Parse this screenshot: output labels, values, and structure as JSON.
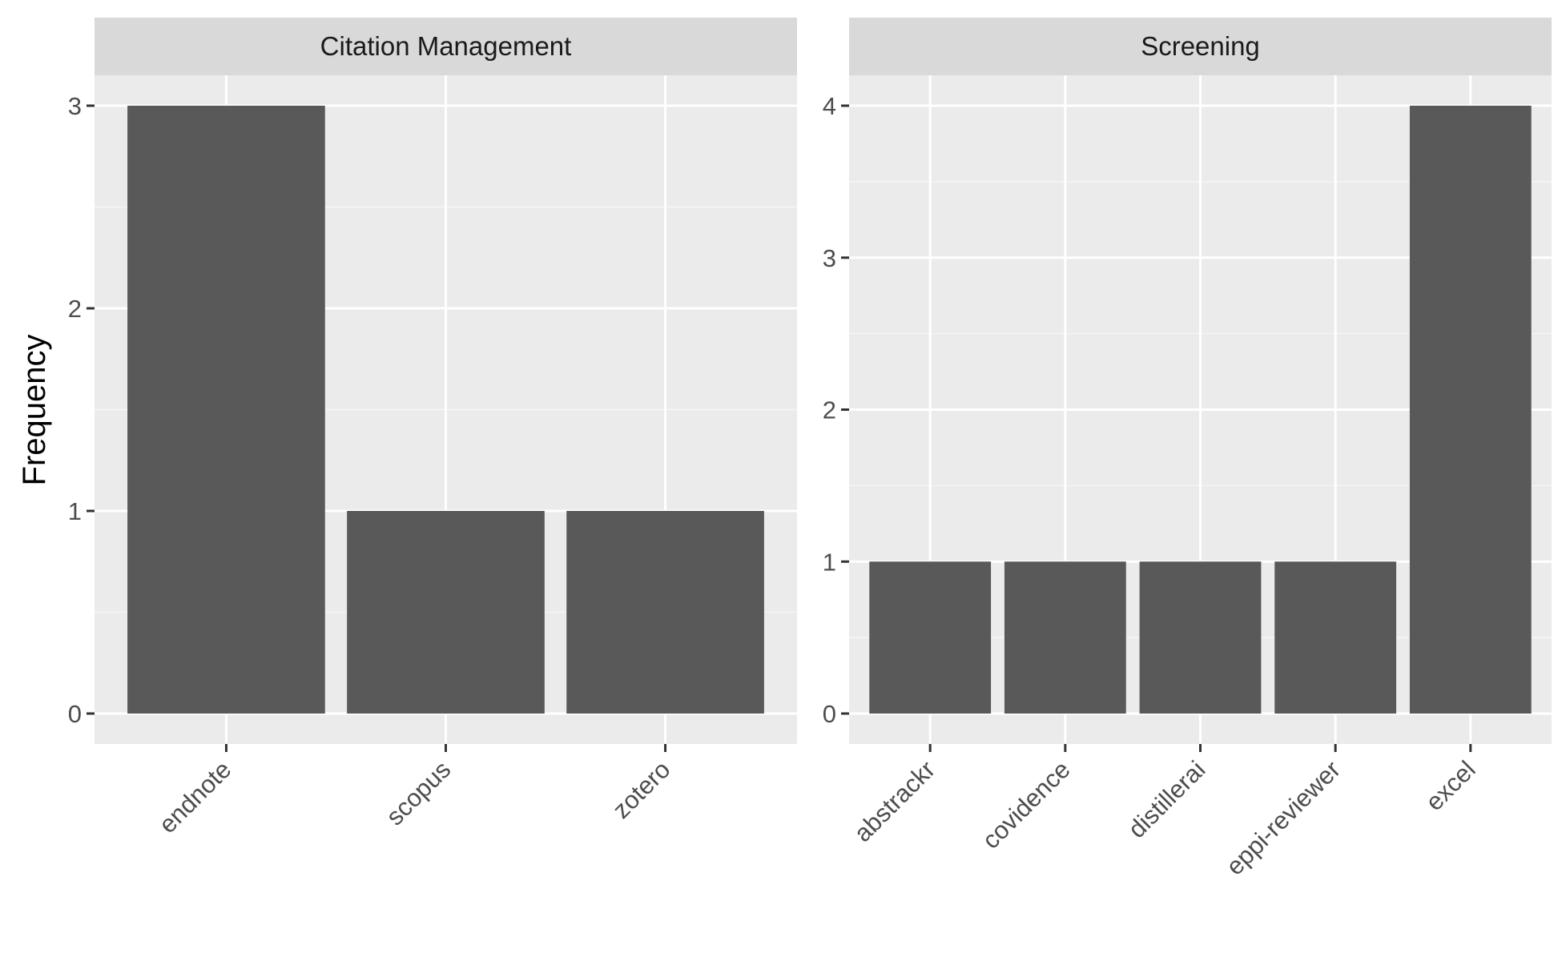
{
  "colors": {
    "panel_background": "#ebebeb",
    "strip_background": "#d9d9d9",
    "grid_major": "#ffffff",
    "grid_minor": "#f5f5f5",
    "bar_fill": "#595959",
    "tick_mark": "#333333",
    "tick_text": "#4d4d4d"
  },
  "chart_data": {
    "type": "bar",
    "ylabel": "Frequency",
    "xlabel": "",
    "title": "",
    "grid": true,
    "legend": "none",
    "panels": [
      {
        "strip_label": "Citation Management",
        "categories": [
          "endnote",
          "scopus",
          "zotero"
        ],
        "values": [
          3,
          1,
          1
        ],
        "ylim": [
          0,
          3
        ],
        "yticks": [
          0,
          1,
          2,
          3
        ]
      },
      {
        "strip_label": "Screening",
        "categories": [
          "abstrackr",
          "covidence",
          "distillerai",
          "eppi-reviewer",
          "excel"
        ],
        "values": [
          1,
          1,
          1,
          1,
          4
        ],
        "ylim": [
          0,
          4
        ],
        "yticks": [
          0,
          1,
          2,
          3,
          4
        ]
      }
    ]
  }
}
